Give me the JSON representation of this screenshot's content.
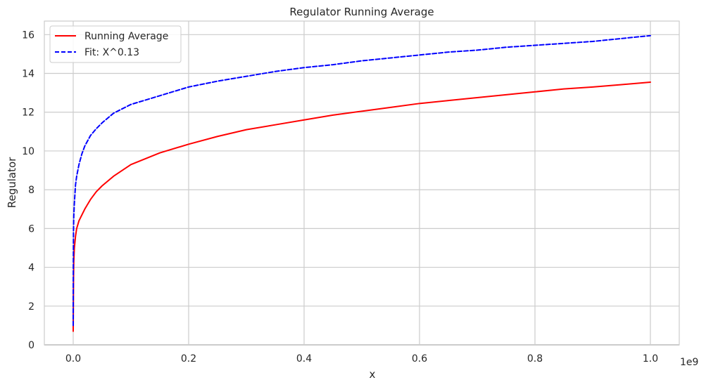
{
  "chart_data": {
    "type": "line",
    "title": "Regulator Running Average",
    "xlabel": "x",
    "ylabel": "Regulator",
    "x_offset_label": "1e9",
    "xlim": [
      -0.05,
      1.05
    ],
    "ylim": [
      0,
      16.7
    ],
    "x_scale_factor": 1000000000,
    "x_ticks": [
      0.0,
      0.2,
      0.4,
      0.6,
      0.8,
      1.0
    ],
    "x_tick_labels": [
      "0.0",
      "0.2",
      "0.4",
      "0.6",
      "0.8",
      "1.0"
    ],
    "y_ticks": [
      0,
      2,
      4,
      6,
      8,
      10,
      12,
      14,
      16
    ],
    "y_tick_labels": [
      "0",
      "2",
      "4",
      "6",
      "8",
      "10",
      "12",
      "14",
      "16"
    ],
    "grid": true,
    "legend_position": "top-left",
    "series": [
      {
        "name": "Running Average",
        "style": "solid",
        "color": "#ff0000",
        "x": [
          0.0,
          0.0005,
          0.001,
          0.002,
          0.004,
          0.006,
          0.01,
          0.015,
          0.02,
          0.03,
          0.04,
          0.05,
          0.07,
          0.1,
          0.15,
          0.2,
          0.25,
          0.3,
          0.35,
          0.4,
          0.45,
          0.5,
          0.55,
          0.6,
          0.65,
          0.7,
          0.75,
          0.8,
          0.85,
          0.9,
          0.95,
          1.0
        ],
        "y": [
          0.7,
          3.3,
          4.3,
          5.0,
          5.6,
          6.0,
          6.4,
          6.7,
          7.0,
          7.5,
          7.9,
          8.2,
          8.7,
          9.3,
          9.9,
          10.35,
          10.75,
          11.1,
          11.35,
          11.6,
          11.85,
          12.05,
          12.25,
          12.45,
          12.6,
          12.75,
          12.9,
          13.05,
          13.2,
          13.3,
          13.42,
          13.55
        ]
      },
      {
        "name": "Fit: X^0.13",
        "style": "dashed",
        "color": "#0000ff",
        "exponent": 0.13,
        "x": [
          0.0,
          0.0002,
          0.0005,
          0.001,
          0.002,
          0.004,
          0.006,
          0.01,
          0.015,
          0.02,
          0.03,
          0.04,
          0.05,
          0.07,
          0.1,
          0.15,
          0.2,
          0.25,
          0.3,
          0.35,
          0.4,
          0.45,
          0.5,
          0.55,
          0.6,
          0.65,
          0.7,
          0.75,
          0.8,
          0.85,
          0.9,
          0.95,
          1.0
        ],
        "y": [
          1.0,
          3.9,
          5.85,
          6.65,
          7.3,
          8.25,
          8.7,
          9.3,
          9.85,
          10.25,
          10.8,
          11.15,
          11.45,
          11.95,
          12.4,
          12.85,
          13.3,
          13.6,
          13.85,
          14.1,
          14.3,
          14.45,
          14.65,
          14.8,
          14.95,
          15.1,
          15.2,
          15.35,
          15.45,
          15.55,
          15.65,
          15.8,
          15.95
        ]
      }
    ]
  }
}
